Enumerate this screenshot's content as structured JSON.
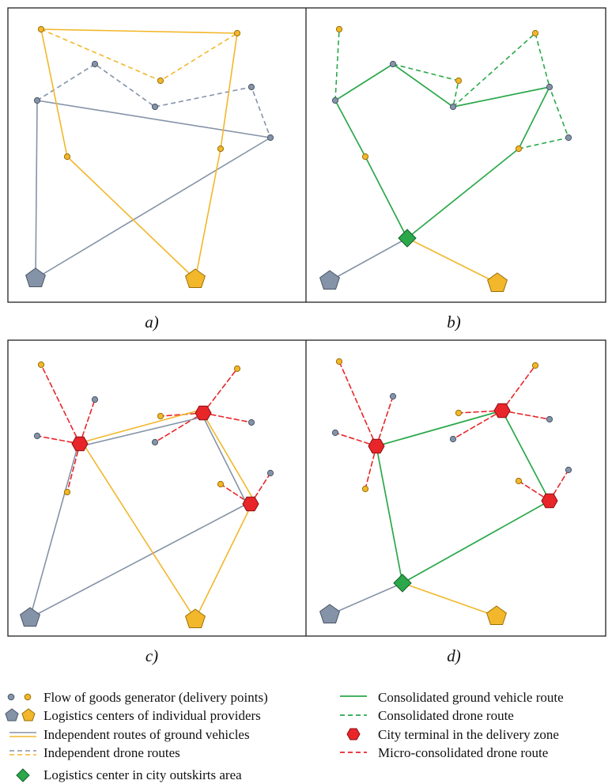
{
  "colors": {
    "gray": "#8593a8",
    "gray_stroke": "#4a5666",
    "yellow": "#f2b72a",
    "yellow_stroke": "#9a6e08",
    "green": "#2aa84a",
    "green_stroke": "#15602a",
    "red": "#e8262a",
    "red_stroke": "#8a0d10",
    "frame": "#222222"
  },
  "panels": [
    {
      "id": "a",
      "caption": "a)"
    },
    {
      "id": "b",
      "caption": "b)"
    },
    {
      "id": "c",
      "caption": "c)"
    },
    {
      "id": "d",
      "caption": "d)"
    }
  ],
  "legend": {
    "left": [
      {
        "icon": "delivery-points",
        "label": "Flow of goods generator (delivery points)"
      },
      {
        "icon": "logistics-centers",
        "label": "Logistics centers of individual providers"
      },
      {
        "icon": "gray-solid-yellow-solid-line",
        "label": "Independent routes of ground vehicles"
      },
      {
        "icon": "gray-dashed-yellow-dashed-line",
        "label": "Independent drone routes"
      },
      {
        "icon": "green-diamond",
        "label": "Logistics center in city outskirts area"
      }
    ],
    "right": [
      {
        "icon": "green-solid-line",
        "label": "Consolidated ground vehicle route"
      },
      {
        "icon": "green-dashed-line",
        "label": "Consolidated drone route"
      },
      {
        "icon": "red-hexagon",
        "label": "City terminal in the delivery zone"
      },
      {
        "icon": "red-dashed-line",
        "label": "Micro-consolidated drone route"
      }
    ]
  }
}
